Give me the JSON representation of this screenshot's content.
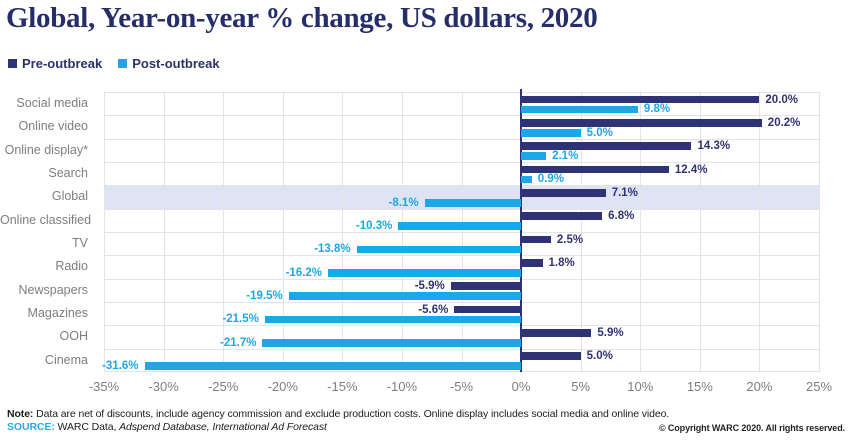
{
  "title": "Global, Year-on-year % change, US dollars, 2020",
  "legend": {
    "items": [
      {
        "label": "Pre-outbreak",
        "color": "#2f3274"
      },
      {
        "label": "Post-outbreak",
        "color": "#1ca7e8"
      }
    ]
  },
  "chart_data": {
    "type": "bar",
    "orientation": "horizontal",
    "title": "Global, Year-on-year % change, US dollars, 2020",
    "categories": [
      "Social media",
      "Online video",
      "Online display*",
      "Search",
      "Global",
      "Online classified",
      "TV",
      "Radio",
      "Newspapers",
      "Magazines",
      "OOH",
      "Cinema"
    ],
    "series": [
      {
        "name": "Pre-outbreak",
        "color": "#2f3274",
        "values": [
          20.0,
          20.2,
          14.3,
          12.4,
          7.1,
          6.8,
          2.5,
          1.8,
          -5.9,
          -5.6,
          5.9,
          5.0
        ],
        "labels": [
          "20.0%",
          "20.2%",
          "14.3%",
          "12.4%",
          "7.1%",
          "6.8%",
          "2.5%",
          "1.8%",
          "-5.9%",
          "-5.6%",
          "5.9%",
          "5.0%"
        ]
      },
      {
        "name": "Post-outbreak",
        "color": "#1ca7e8",
        "values": [
          9.8,
          5.0,
          2.1,
          0.9,
          -8.1,
          -10.3,
          -13.8,
          -16.2,
          -19.5,
          -21.5,
          -21.7,
          -31.6
        ],
        "labels": [
          "9.8%",
          "5.0%",
          "2.1%",
          "0.9%",
          "-8.1%",
          "-10.3%",
          "-13.8%",
          "-16.2%",
          "-19.5%",
          "-21.5%",
          "-21.7%",
          "-31.6%"
        ]
      }
    ],
    "xlim": [
      -35,
      25
    ],
    "xticks": [
      {
        "value": -35,
        "label": "-35%"
      },
      {
        "value": -30,
        "label": "-30%"
      },
      {
        "value": -25,
        "label": "-25%"
      },
      {
        "value": -20,
        "label": "-20%"
      },
      {
        "value": -15,
        "label": "-15%"
      },
      {
        "value": -10,
        "label": "-10%"
      },
      {
        "value": -5,
        "label": "-5%"
      },
      {
        "value": 0,
        "label": "0%"
      },
      {
        "value": 5,
        "label": "5%"
      },
      {
        "value": 10,
        "label": "10%"
      },
      {
        "value": 15,
        "label": "15%"
      },
      {
        "value": 20,
        "label": "20%"
      },
      {
        "value": 25,
        "label": "25%"
      }
    ],
    "grid": true,
    "legend_position": "top-left",
    "highlighted_category": "Global",
    "highlight_color": "#dfe4f5"
  },
  "footer": {
    "note_label": "Note:",
    "note_text": " Data are net of discounts, include agency commission and exclude production costs. Online display includes social media and online video.",
    "source_label": "SOURCE:",
    "source_text": " WARC Data, ",
    "source_italic": "Adspend Database, International Ad Forecast",
    "copyright": "© Copyright WARC 2020. All rights reserved."
  }
}
